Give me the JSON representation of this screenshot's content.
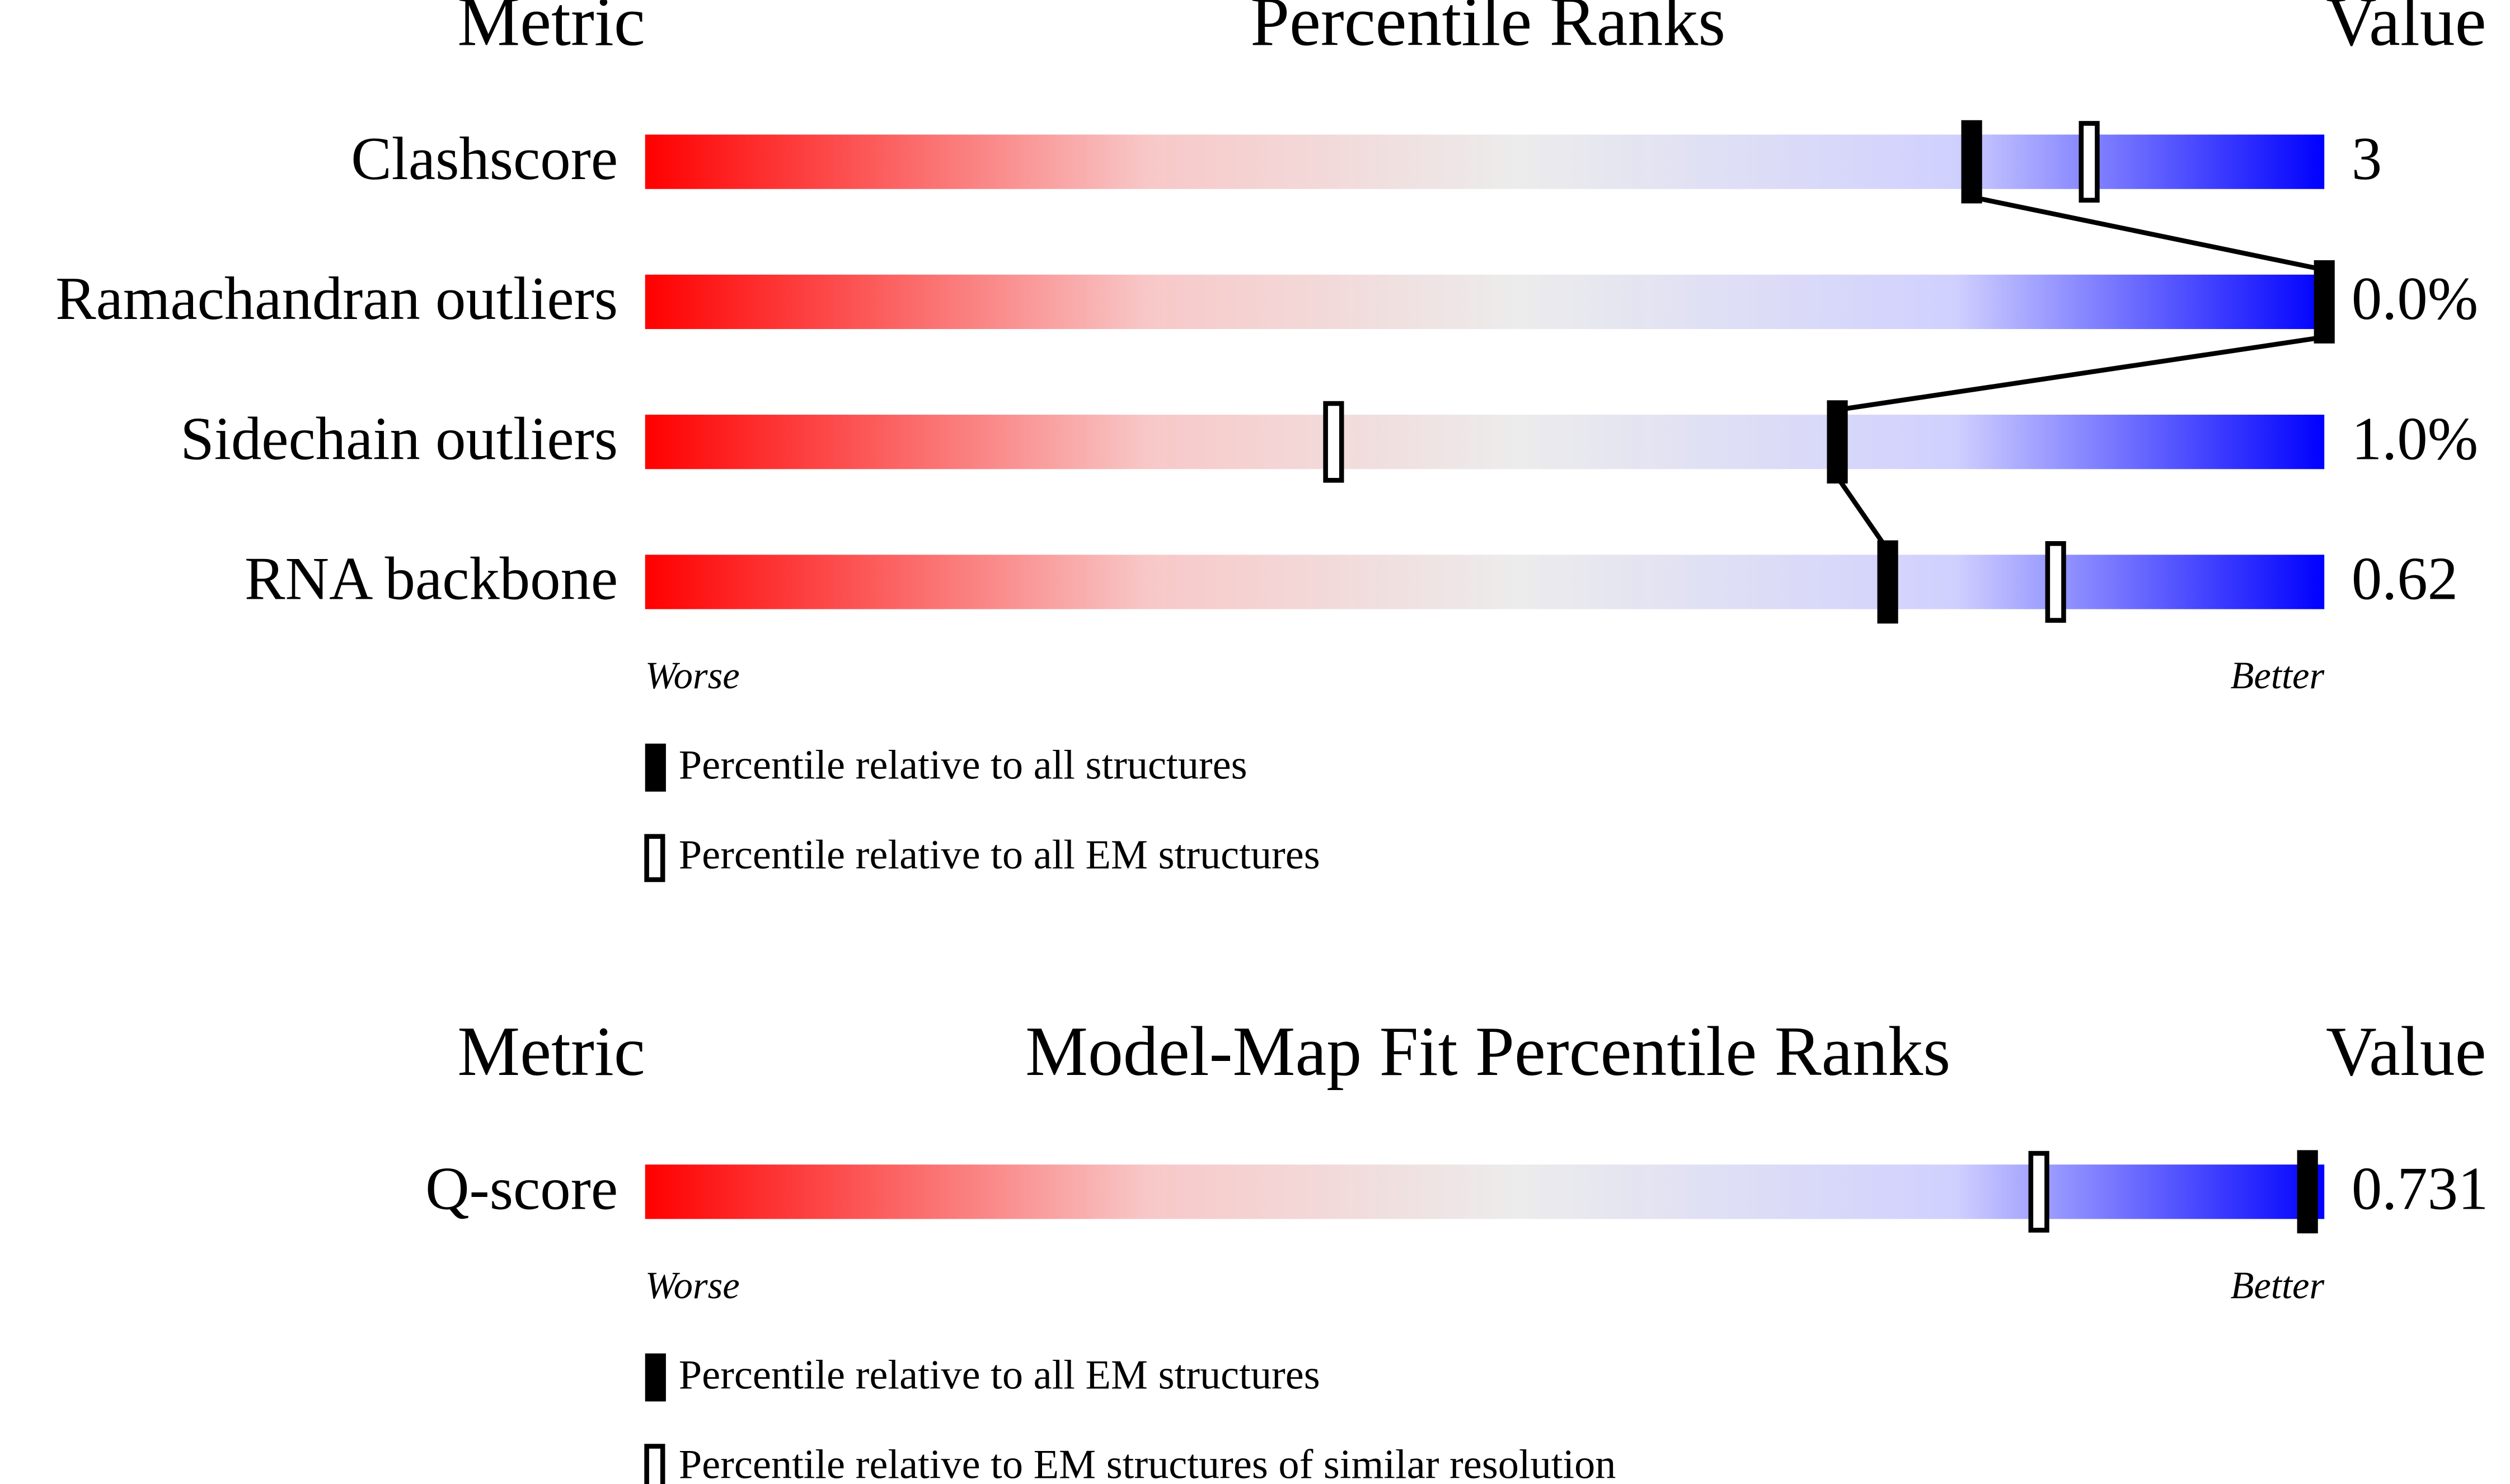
{
  "chart_data": [
    {
      "type": "slider",
      "header": {
        "metric": "Metric",
        "title": "Percentile Ranks",
        "value": "Value"
      },
      "categories": [
        "Clashscore",
        "Ramachandran outliers",
        "Sidechain outliers",
        "RNA backbone"
      ],
      "metric_values": [
        "3",
        "0.0%",
        "1.0%",
        "0.62"
      ],
      "series": [
        {
          "name": "Percentile relative to all structures",
          "color": "#000000",
          "style": "solid",
          "values": [
            79,
            100,
            71,
            74
          ]
        },
        {
          "name": "Percentile relative to all EM structures",
          "color": "#000000",
          "style": "hollow",
          "values": [
            86,
            null,
            41,
            84
          ]
        }
      ],
      "xlim": [
        0,
        100
      ],
      "worse": "Worse",
      "better": "Better",
      "connect": true
    },
    {
      "type": "slider",
      "header": {
        "metric": "Metric",
        "title": "Model-Map Fit Percentile Ranks",
        "value": "Value"
      },
      "categories": [
        "Q-score"
      ],
      "metric_values": [
        "0.731"
      ],
      "series": [
        {
          "name": "Percentile relative to all EM structures",
          "color": "#000000",
          "style": "solid",
          "values": [
            99
          ]
        },
        {
          "name": "Percentile relative to EM structures of similar resolution",
          "color": "#000000",
          "style": "hollow",
          "values": [
            83
          ]
        }
      ],
      "xlim": [
        0,
        100
      ],
      "worse": "Worse",
      "better": "Better",
      "connect": false
    }
  ]
}
